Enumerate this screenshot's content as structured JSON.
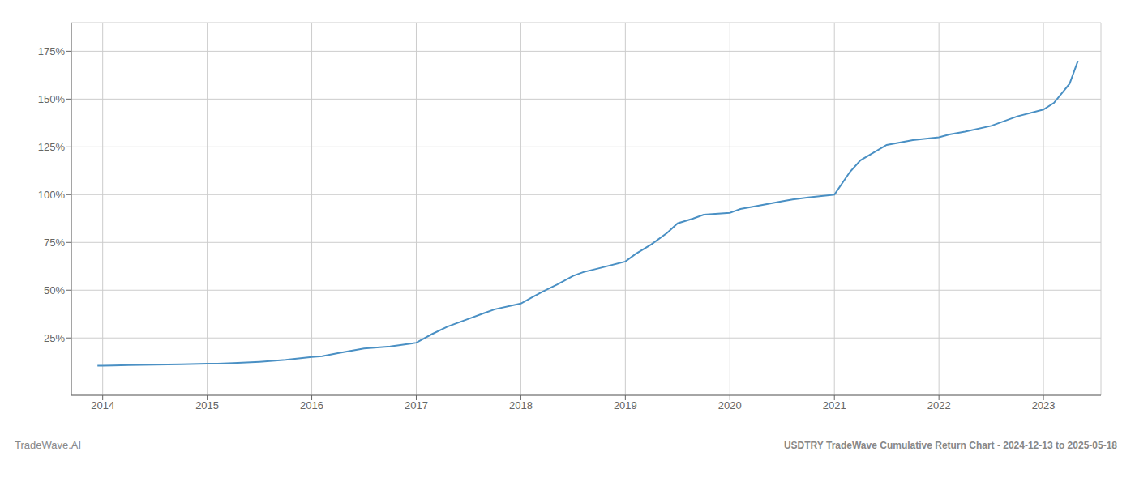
{
  "chart_data": {
    "type": "line",
    "title": "USDTRY TradeWave Cumulative Return Chart - 2024-12-13 to 2025-05-18",
    "annotations": [
      "TradeWave.AI"
    ],
    "x": [
      2013.95,
      2014.0,
      2014.1,
      2014.25,
      2014.5,
      2014.75,
      2015.0,
      2015.1,
      2015.25,
      2015.5,
      2015.75,
      2016.0,
      2016.05,
      2016.1,
      2016.25,
      2016.5,
      2016.75,
      2017.0,
      2017.15,
      2017.3,
      2017.5,
      2017.65,
      2017.75,
      2018.0,
      2018.1,
      2018.2,
      2018.35,
      2018.5,
      2018.6,
      2018.75,
      2019.0,
      2019.1,
      2019.25,
      2019.4,
      2019.5,
      2019.65,
      2019.75,
      2020.0,
      2020.05,
      2020.1,
      2020.25,
      2020.5,
      2020.6,
      2020.75,
      2021.0,
      2021.15,
      2021.25,
      2021.5,
      2021.75,
      2022.0,
      2022.1,
      2022.25,
      2022.5,
      2022.75,
      2023.0,
      2023.1,
      2023.25,
      2023.33
    ],
    "values": [
      10.5,
      10.5,
      10.6,
      10.8,
      11.0,
      11.2,
      11.5,
      11.5,
      11.8,
      12.5,
      13.5,
      15.0,
      15.2,
      15.5,
      17.0,
      19.5,
      20.5,
      22.5,
      27.0,
      31.0,
      35.0,
      38.0,
      40.0,
      43.0,
      46.0,
      49.0,
      53.0,
      57.5,
      59.5,
      61.5,
      65.0,
      69.0,
      74.0,
      80.0,
      85.0,
      87.5,
      89.5,
      90.5,
      91.5,
      92.5,
      94.0,
      96.5,
      97.5,
      98.5,
      100.0,
      112.0,
      118.0,
      126.0,
      128.5,
      130.0,
      131.5,
      133.0,
      136.0,
      141.0,
      144.5,
      148.0,
      158.0,
      170.0
    ],
    "color": "#4a90c4",
    "xlim": [
      2013.7,
      2023.55
    ],
    "xticks": [
      2014,
      2015,
      2016,
      2017,
      2018,
      2019,
      2020,
      2021,
      2022,
      2023
    ],
    "ylim": [
      -5,
      190
    ],
    "yticks": [
      {
        "value": 25,
        "label": "25%"
      },
      {
        "value": 50,
        "label": "50%"
      },
      {
        "value": 75,
        "label": "75%"
      },
      {
        "value": 100,
        "label": "100%"
      },
      {
        "value": 125,
        "label": "125%"
      },
      {
        "value": 150,
        "label": "150%"
      },
      {
        "value": 175,
        "label": "175%"
      }
    ],
    "grid": true
  }
}
